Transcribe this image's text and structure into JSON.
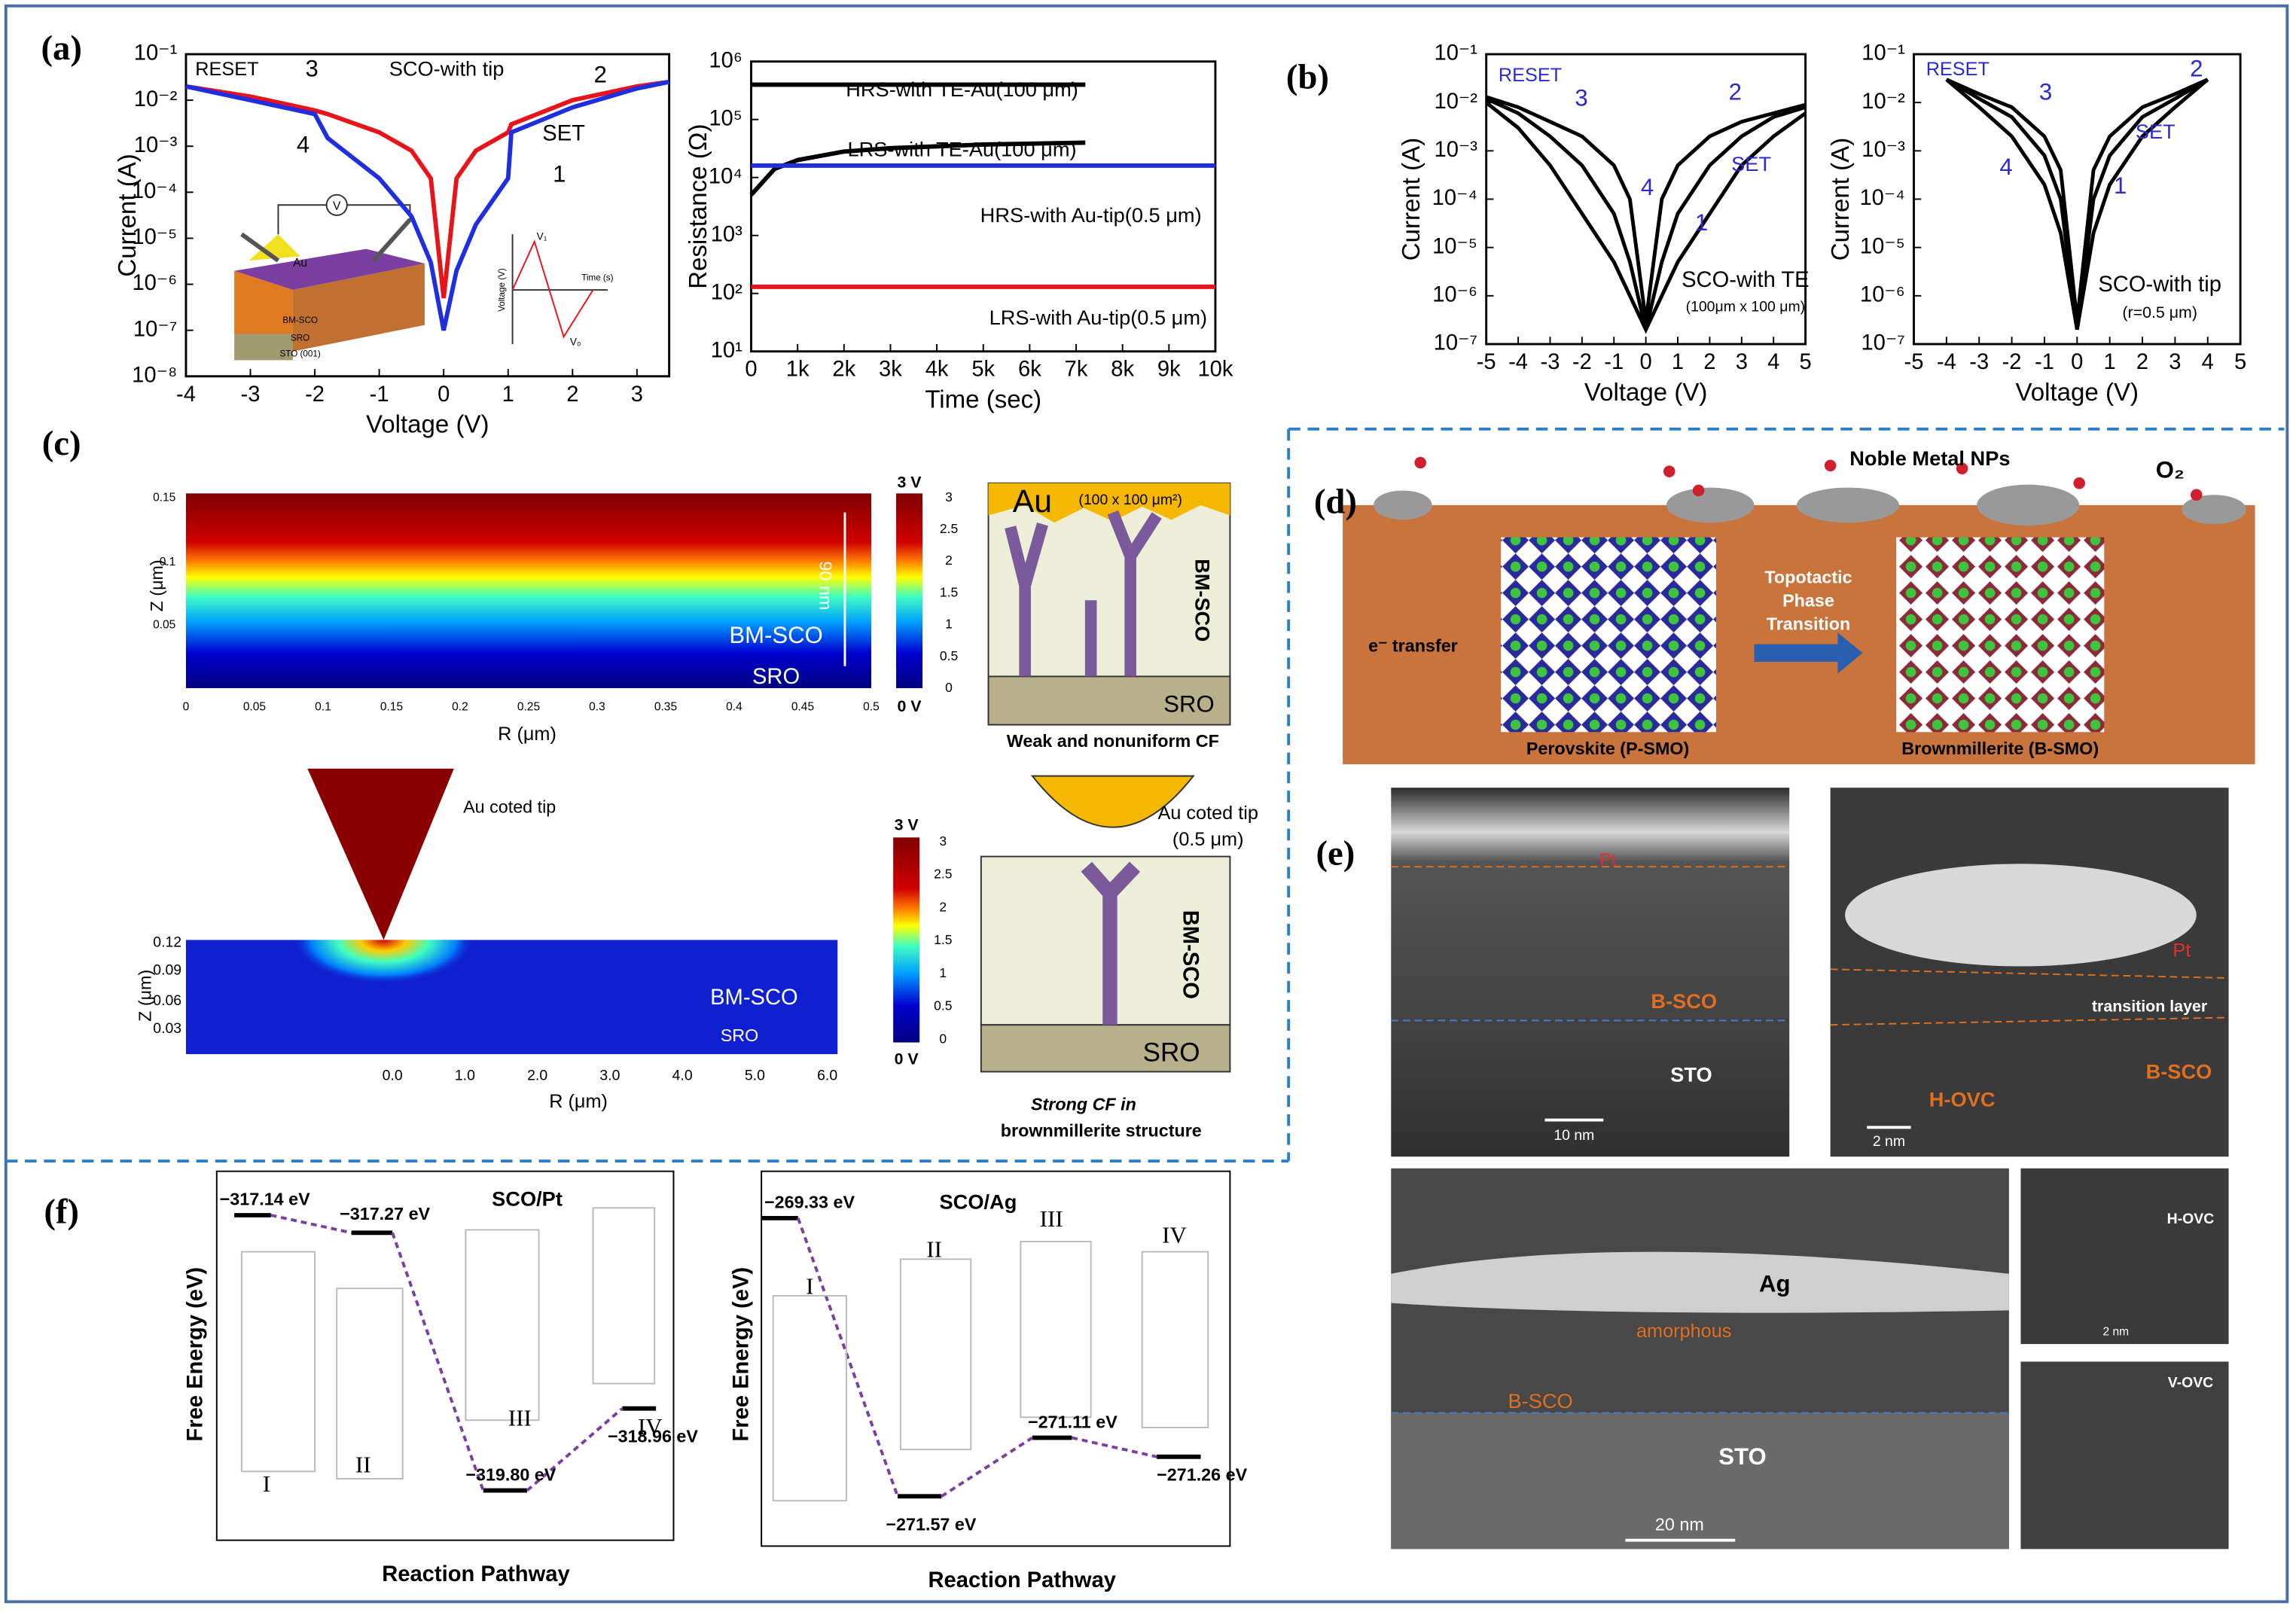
{
  "figure": {
    "panel_labels": [
      "(a)",
      "(b)",
      "(c)",
      "(d)",
      "(e)",
      "(f)"
    ],
    "panel_c": [
      "Z (μm)",
      "0.15",
      "0.1",
      "0.05",
      "0",
      "0.05",
      "0.1",
      "0.15",
      "0.2",
      "0.25",
      "0.3",
      "0.35",
      "0.4",
      "0.45",
      "0.5",
      "R (μm)",
      "90 nm",
      "BM-SCO",
      "SRO",
      "3 V",
      "0 V",
      "3",
      "2.5",
      "2",
      "1.5",
      "1",
      "0.5",
      "0",
      "Au",
      "(100 x 100 μm²)",
      "BM-SCO",
      "SRO",
      "Weak and  nonuniform CF",
      "Au coted tip",
      "Z (μm)",
      "0.12",
      "0.09",
      "0.06",
      "0.03",
      "0.0",
      "1.0",
      "2.0",
      "3.0",
      "4.0",
      "5.0",
      "6.0",
      "R (μm)",
      "BM-SCO",
      "SRO",
      "3 V",
      "0 V",
      "3",
      "2.5",
      "2",
      "1.5",
      "1",
      "0.5",
      "0",
      "Au coted tip",
      "(0.5 μm)",
      "BM-SCO",
      "SRO",
      "Strong CF in",
      "brownmillerite structure"
    ],
    "panel_d": [
      "Noble Metal NPs",
      "O₂",
      "e⁻ transfer",
      "Topotactic",
      "Phase",
      "Transition",
      "Perovskite (P-SMO)",
      "Brownmillerite (B-SMO)"
    ],
    "panel_e": [
      "Pt",
      "B-SCO",
      "STO",
      "10 nm",
      "Pt",
      "transition layer",
      "B-SCO",
      "H-OVC",
      "2 nm",
      "Ag",
      "amorphous",
      "B-SCO",
      "STO",
      "20 nm",
      "H-OVC",
      "2 nm",
      "V-OVC"
    ],
    "panel_f": [
      "SCO/Pt",
      "−317.14 eV",
      "−317.27 eV",
      "−319.80 eV",
      "−318.96 eV",
      "I",
      "II",
      "III",
      "IV",
      "Free Energy (eV)",
      "Reaction Pathway",
      "SCO/Ag",
      "−269.33 eV",
      "−271.57 eV",
      "−271.11 eV",
      "−271.26 eV",
      "I",
      "II",
      "III",
      "IV",
      "Free Energy (eV)",
      "Reaction Pathway"
    ]
  },
  "chart_data": [
    {
      "type": "line",
      "x_label": "Voltage (V)",
      "y_label": "Current (A)",
      "log_y": true,
      "xlim": [
        -4,
        3.5
      ],
      "xticks": [
        -4,
        -3,
        -2,
        -1,
        0,
        1,
        2,
        3
      ],
      "ylim": [
        1e-08,
        0.1
      ],
      "yticks": [
        {
          "value": 1e-08,
          "label": "10⁻⁸"
        },
        {
          "value": 1e-07,
          "label": "10⁻⁷"
        },
        {
          "value": 1e-06,
          "label": "10⁻⁶"
        },
        {
          "value": 1e-05,
          "label": "10⁻⁵"
        },
        {
          "value": 0.0001,
          "label": "10⁻⁴"
        },
        {
          "value": 0.001,
          "label": "10⁻³"
        },
        {
          "value": 0.01,
          "label": "10⁻²"
        },
        {
          "value": 0.1,
          "label": "10⁻¹"
        }
      ],
      "x": [
        -4,
        -3,
        -2,
        -1.8,
        -1,
        -0.5,
        -0.2,
        0,
        0.2,
        0.5,
        1,
        1.05,
        2,
        3,
        3.5
      ],
      "series": [
        {
          "color": "#e8141c",
          "values": [
            0.02,
            0.012,
            0.006,
            0.005,
            0.002,
            0.0008,
            0.0002,
            5e-07,
            0.0002,
            0.0008,
            0.002,
            0.003,
            0.01,
            0.02,
            0.025
          ]
        },
        {
          "color": "#1f2fe0",
          "values": [
            0.02,
            0.01,
            0.005,
            0.0015,
            0.0002,
            3e-05,
            3e-06,
            1e-07,
            2e-06,
            2e-05,
            0.0002,
            0.002,
            0.007,
            0.018,
            0.025
          ]
        }
      ],
      "annotations": [
        "RESET",
        "3",
        "SCO-with tip",
        "2",
        "SET",
        "1",
        "4",
        "Au",
        "BM-SCO",
        "SRO",
        "STO (001)",
        "V",
        "Voltage (V)",
        "Time (s)",
        "V₁",
        "V₀"
      ]
    },
    {
      "type": "line",
      "x_label": "Time (sec)",
      "y_label": "Resistance (Ω)",
      "log_y": true,
      "xlim": [
        0,
        10000
      ],
      "xticks": [
        0,
        {
          "value": 1000,
          "label": "1k"
        },
        {
          "value": 2000,
          "label": "2k"
        },
        {
          "value": 3000,
          "label": "3k"
        },
        {
          "value": 4000,
          "label": "4k"
        },
        {
          "value": 5000,
          "label": "5k"
        },
        {
          "value": 6000,
          "label": "6k"
        },
        {
          "value": 7000,
          "label": "7k"
        },
        {
          "value": 8000,
          "label": "8k"
        },
        {
          "value": 9000,
          "label": "9k"
        },
        {
          "value": 10000,
          "label": "10k"
        }
      ],
      "ylim": [
        10,
        1000000
      ],
      "yticks": [
        {
          "value": 10,
          "label": "10¹"
        },
        {
          "value": 100,
          "label": "10²"
        },
        {
          "value": 1000,
          "label": "10³"
        },
        {
          "value": 10000,
          "label": "10⁴"
        },
        {
          "value": 100000,
          "label": "10⁵"
        },
        {
          "value": 1000000,
          "label": "10⁶"
        }
      ],
      "x": [
        0,
        500,
        1000,
        2000,
        3000,
        5000,
        7200,
        8000,
        10000
      ],
      "series": [
        {
          "name": "HRS-with TE-Au(100 μm)",
          "color": "#000000",
          "values": [
            400000,
            400000,
            400000,
            400000,
            400000,
            400000,
            400000,
            null,
            null
          ]
        },
        {
          "name": "LRS-with TE-Au(100 μm)",
          "color": "#000000",
          "values": [
            5000,
            14000,
            20000,
            28000,
            32000,
            37000,
            40000,
            null,
            null
          ]
        },
        {
          "name": "HRS-with Au-tip(0.5 μm)",
          "color": "#1f2fe0",
          "values": [
            16000,
            16000,
            16000,
            16000,
            16000,
            16000,
            16000,
            16000,
            16000
          ]
        },
        {
          "name": "LRS-with Au-tip(0.5 μm)",
          "color": "#e8141c",
          "values": [
            130,
            130,
            130,
            130,
            130,
            130,
            130,
            130,
            130
          ]
        }
      ],
      "annotations": []
    },
    {
      "type": "line",
      "x_label": "Voltage (V)",
      "y_label": "Current (A)",
      "log_y": true,
      "xlim": [
        -5,
        5
      ],
      "xticks": [
        -5,
        -4,
        -3,
        -2,
        -1,
        0,
        1,
        2,
        3,
        4,
        5
      ],
      "ylim": [
        1e-07,
        0.1
      ],
      "yticks": [
        {
          "value": 1e-07,
          "label": "10⁻⁷"
        },
        {
          "value": 1e-06,
          "label": "10⁻⁶"
        },
        {
          "value": 1e-05,
          "label": "10⁻⁵"
        },
        {
          "value": 0.0001,
          "label": "10⁻⁴"
        },
        {
          "value": 0.001,
          "label": "10⁻³"
        },
        {
          "value": 0.01,
          "label": "10⁻²"
        },
        {
          "value": 0.1,
          "label": "10⁻¹"
        }
      ],
      "x": [
        -5,
        -4,
        -3,
        -2,
        -1,
        -0.5,
        0,
        0.5,
        1,
        2,
        3,
        4,
        5
      ],
      "series": [
        {
          "color": "#000000",
          "values": [
            0.012,
            0.006,
            0.002,
            0.0005,
            5e-05,
            5e-06,
            2e-07,
            5e-06,
            5e-05,
            0.0005,
            0.002,
            0.005,
            0.008
          ]
        },
        {
          "color": "#000000",
          "values": [
            0.01,
            0.003,
            0.0005,
            5e-05,
            5e-06,
            1e-06,
            2e-07,
            1e-06,
            5e-06,
            5e-05,
            0.0005,
            0.002,
            0.006
          ]
        },
        {
          "color": "#000000",
          "values": [
            0.013,
            0.008,
            0.004,
            0.002,
            0.0005,
            0.0001,
            3e-07,
            0.0001,
            0.0005,
            0.002,
            0.004,
            0.006,
            0.009
          ]
        }
      ],
      "annotations": [
        "RESET",
        "3",
        "2",
        "SET",
        "1",
        "4",
        "SCO-with TE",
        "(100μm x 100 μm)"
      ]
    },
    {
      "type": "line",
      "x_label": "Voltage (V)",
      "y_label": "Current (A)",
      "log_y": true,
      "xlim": [
        -5,
        5
      ],
      "xticks": [
        -5,
        -4,
        -3,
        -2,
        -1,
        0,
        1,
        2,
        3,
        4,
        5
      ],
      "ylim": [
        1e-07,
        0.1
      ],
      "yticks": [
        {
          "value": 1e-07,
          "label": "10⁻⁷"
        },
        {
          "value": 1e-06,
          "label": "10⁻⁶"
        },
        {
          "value": 1e-05,
          "label": "10⁻⁵"
        },
        {
          "value": 0.0001,
          "label": "10⁻⁴"
        },
        {
          "value": 0.001,
          "label": "10⁻³"
        },
        {
          "value": 0.01,
          "label": "10⁻²"
        },
        {
          "value": 0.1,
          "label": "10⁻¹"
        }
      ],
      "x": [
        -5,
        -4,
        -3,
        -2,
        -1,
        -0.5,
        0,
        0.5,
        1,
        2,
        3,
        4,
        5
      ],
      "series": [
        {
          "color": "#000000",
          "values": [
            null,
            0.03,
            0.012,
            0.005,
            0.0008,
            0.0001,
            2e-07,
            0.0001,
            0.0008,
            0.005,
            0.012,
            0.03,
            null
          ]
        },
        {
          "color": "#000000",
          "values": [
            null,
            0.03,
            0.008,
            0.002,
            0.0002,
            2e-05,
            2e-07,
            2e-05,
            0.0002,
            0.002,
            0.008,
            0.03,
            null
          ]
        },
        {
          "color": "#000000",
          "values": [
            null,
            0.03,
            0.015,
            0.008,
            0.002,
            0.0004,
            3e-07,
            0.0004,
            0.002,
            0.008,
            0.015,
            0.03,
            null
          ]
        }
      ],
      "annotations": [
        "RESET",
        "3",
        "2",
        "SET",
        "1",
        "4",
        "SCO-with tip",
        "(r=0.5 μm)"
      ]
    }
  ]
}
